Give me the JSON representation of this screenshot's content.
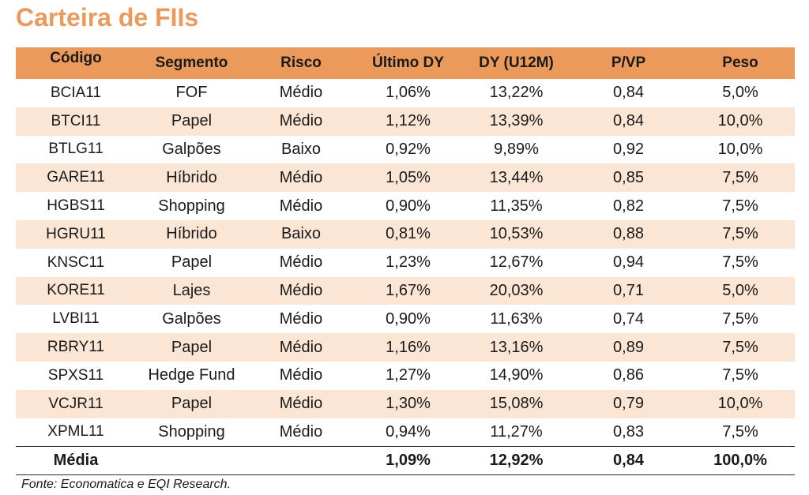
{
  "title": "Carteira de FIIs",
  "colors": {
    "title": "#ec9a5b",
    "header_bg": "#ec9a5b",
    "alt_row_bg": "#fbe5d4"
  },
  "table": {
    "headers": [
      "Código",
      "Segmento",
      "Risco",
      "Último DY",
      "DY (U12M)",
      "P/VP",
      "Peso"
    ],
    "rows": [
      [
        "BCIA11",
        "FOF",
        "Médio",
        "1,06%",
        "13,22%",
        "0,84",
        "5,0%"
      ],
      [
        "BTCI11",
        "Papel",
        "Médio",
        "1,12%",
        "13,39%",
        "0,84",
        "10,0%"
      ],
      [
        "BTLG11",
        "Galpões",
        "Baixo",
        "0,92%",
        "9,89%",
        "0,92",
        "10,0%"
      ],
      [
        "GARE11",
        "Híbrido",
        "Médio",
        "1,05%",
        "13,44%",
        "0,85",
        "7,5%"
      ],
      [
        "HGBS11",
        "Shopping",
        "Médio",
        "0,90%",
        "11,35%",
        "0,82",
        "7,5%"
      ],
      [
        "HGRU11",
        "Híbrido",
        "Baixo",
        "0,81%",
        "10,53%",
        "0,88",
        "7,5%"
      ],
      [
        "KNSC11",
        "Papel",
        "Médio",
        "1,23%",
        "12,67%",
        "0,94",
        "7,5%"
      ],
      [
        "KORE11",
        "Lajes",
        "Médio",
        "1,67%",
        "20,03%",
        "0,71",
        "5,0%"
      ],
      [
        "LVBI11",
        "Galpões",
        "Médio",
        "0,90%",
        "11,63%",
        "0,74",
        "7,5%"
      ],
      [
        "RBRY11",
        "Papel",
        "Médio",
        "1,16%",
        "13,16%",
        "0,89",
        "7,5%"
      ],
      [
        "SPXS11",
        "Hedge Fund",
        "Médio",
        "1,27%",
        "14,90%",
        "0,86",
        "7,5%"
      ],
      [
        "VCJR11",
        "Papel",
        "Médio",
        "1,30%",
        "15,08%",
        "0,79",
        "10,0%"
      ],
      [
        "XPML11",
        "Shopping",
        "Médio",
        "0,94%",
        "11,27%",
        "0,83",
        "7,5%"
      ]
    ],
    "average": {
      "label": "Média",
      "segment": "",
      "risk": "",
      "last_dy": "1,09%",
      "dy_12m": "12,92%",
      "p_vp": "0,84",
      "weight": "100,0%"
    }
  },
  "source": "Fonte:  Economatica e EQI Research."
}
